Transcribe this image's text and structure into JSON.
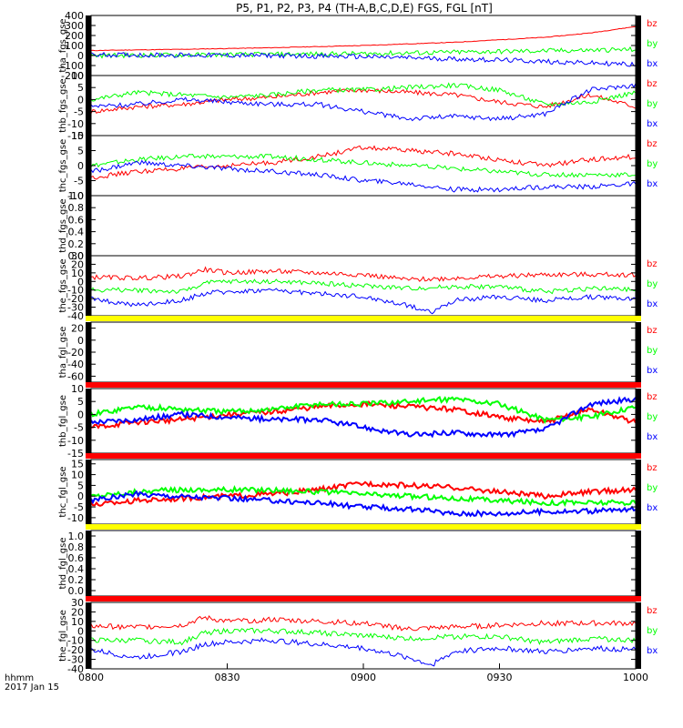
{
  "title": "P5, P1, P2, P3, P4 (TH-A,B,C,D,E) FGS, FGL [nT]",
  "colors": {
    "bx": "#0000ff",
    "by": "#00ff00",
    "bz": "#ff0000",
    "yellow": "#ffff00",
    "red": "#ff0000",
    "axis": "#000000"
  },
  "time_axis": {
    "ticks": [
      "0800",
      "0830",
      "0900",
      "0930",
      "1000"
    ],
    "unit_label": "hhmm",
    "date_label": "2017 Jan 15"
  },
  "chart_data": [
    {
      "type": "line",
      "ylabel": "tha_fgs_gse",
      "yticks": [
        "400",
        "300",
        "200",
        "100",
        "0",
        "-100",
        "-200"
      ],
      "ylim": [
        -200,
        400
      ],
      "legend": [
        "bz",
        "by",
        "bx"
      ],
      "series": [
        {
          "name": "bz",
          "x_minutes": [
            0,
            20,
            40,
            60,
            80,
            100,
            110,
            120
          ],
          "values": [
            50,
            62,
            78,
            100,
            132,
            182,
            225,
            290
          ]
        },
        {
          "name": "by",
          "x_minutes": [
            0,
            30,
            60,
            90,
            120
          ],
          "values": [
            0,
            8,
            18,
            40,
            60
          ]
        },
        {
          "name": "bx",
          "x_minutes": [
            0,
            40,
            60,
            90,
            120
          ],
          "values": [
            8,
            0,
            -12,
            -45,
            -90
          ]
        }
      ]
    },
    {
      "type": "line",
      "ylabel": "thb_fgs_gse",
      "yticks": [
        "10",
        "5",
        "0",
        "-5",
        "-10",
        "-15"
      ],
      "ylim": [
        -15,
        10
      ],
      "legend": [
        "bz",
        "by",
        "bx"
      ],
      "series": [
        {
          "name": "bz",
          "x_minutes": [
            0,
            10,
            20,
            30,
            40,
            50,
            60,
            70,
            80,
            90,
            100,
            110,
            120
          ],
          "values": [
            -5,
            -3,
            -2,
            0,
            1,
            3,
            4,
            3,
            2,
            -1,
            -3,
            2,
            -3
          ]
        },
        {
          "name": "by",
          "x_minutes": [
            0,
            10,
            20,
            30,
            40,
            50,
            60,
            70,
            80,
            90,
            100,
            110,
            120
          ],
          "values": [
            0,
            3,
            2,
            1,
            2,
            4,
            4,
            5,
            6,
            4,
            -2,
            -1,
            3
          ]
        },
        {
          "name": "bx",
          "x_minutes": [
            0,
            10,
            20,
            30,
            40,
            50,
            60,
            70,
            80,
            90,
            100,
            110,
            120
          ],
          "values": [
            -3,
            -2,
            0,
            -1,
            -2,
            -2,
            -5,
            -8,
            -7,
            -8,
            -6,
            4,
            6
          ]
        }
      ]
    },
    {
      "type": "line",
      "ylabel": "thc_fgs_gse",
      "yticks": [
        "10",
        "5",
        "0",
        "-5",
        "-10"
      ],
      "ylim": [
        -10,
        10
      ],
      "legend": [
        "bz",
        "by",
        "bx"
      ],
      "series": [
        {
          "name": "bz",
          "x_minutes": [
            0,
            10,
            20,
            30,
            40,
            50,
            60,
            70,
            80,
            90,
            100,
            110,
            120
          ],
          "values": [
            -4,
            -2,
            -1,
            0,
            1,
            3,
            6,
            5,
            4,
            2,
            0,
            2,
            3
          ]
        },
        {
          "name": "by",
          "x_minutes": [
            0,
            10,
            20,
            30,
            40,
            50,
            60,
            70,
            80,
            90,
            100,
            110,
            120
          ],
          "values": [
            0,
            2,
            3,
            3,
            3,
            2,
            1,
            0,
            -1,
            -2,
            -3,
            -3,
            -3
          ]
        },
        {
          "name": "bx",
          "x_minutes": [
            0,
            10,
            20,
            30,
            40,
            50,
            60,
            70,
            80,
            90,
            100,
            110,
            120
          ],
          "values": [
            -2,
            1,
            0,
            -1,
            -2,
            -3,
            -5,
            -6,
            -8,
            -8,
            -7,
            -7,
            -6
          ]
        }
      ]
    },
    {
      "type": "line",
      "ylabel": "thd_fgs_gse",
      "yticks": [
        "1.0",
        "0.8",
        "0.6",
        "0.4",
        "0.2",
        "0.0"
      ],
      "ylim": [
        0,
        1
      ],
      "legend": [],
      "series": []
    },
    {
      "type": "line",
      "ylabel": "the_fgs_gse",
      "yticks": [
        "30",
        "20",
        "10",
        "0",
        "-10",
        "-20",
        "-30",
        "-40"
      ],
      "ylim": [
        -40,
        30
      ],
      "legend": [
        "bz",
        "by",
        "bx"
      ],
      "series": [
        {
          "name": "bz",
          "x_minutes": [
            0,
            10,
            20,
            25,
            30,
            40,
            50,
            60,
            70,
            80,
            90,
            100,
            110,
            120
          ],
          "values": [
            5,
            4,
            6,
            14,
            10,
            12,
            10,
            8,
            2,
            4,
            6,
            8,
            8,
            8
          ]
        },
        {
          "name": "by",
          "x_minutes": [
            0,
            10,
            20,
            25,
            30,
            40,
            50,
            60,
            70,
            80,
            90,
            100,
            110,
            120
          ],
          "values": [
            -10,
            -10,
            -12,
            -2,
            0,
            0,
            -2,
            -5,
            -8,
            -6,
            -6,
            -12,
            -8,
            -10
          ]
        },
        {
          "name": "bx",
          "x_minutes": [
            0,
            10,
            20,
            25,
            30,
            40,
            50,
            60,
            70,
            75,
            80,
            90,
            100,
            110,
            120
          ],
          "values": [
            -20,
            -28,
            -22,
            -14,
            -12,
            -10,
            -14,
            -18,
            -28,
            -36,
            -22,
            -18,
            -22,
            -18,
            -20
          ]
        }
      ]
    },
    {
      "type": "line",
      "ylabel": "tha_fgl_gse",
      "yticks": [
        "20",
        "0",
        "-20",
        "-40",
        "-60"
      ],
      "ylim": [
        -70,
        30
      ],
      "legend": [
        "bz",
        "by",
        "bx"
      ],
      "series": []
    },
    {
      "type": "line",
      "ylabel": "thb_fgl_gse",
      "yticks": [
        "10",
        "5",
        "0",
        "-5",
        "-10",
        "-15"
      ],
      "ylim": [
        -15,
        10
      ],
      "legend": [
        "bz",
        "by",
        "bx"
      ],
      "series": [
        {
          "name": "bz",
          "x_minutes": [
            0,
            10,
            20,
            30,
            40,
            50,
            60,
            70,
            80,
            90,
            100,
            110,
            120
          ],
          "values": [
            -5,
            -3,
            -2,
            0,
            1,
            3,
            4,
            3,
            2,
            -1,
            -3,
            2,
            -3
          ]
        },
        {
          "name": "by",
          "x_minutes": [
            0,
            10,
            20,
            30,
            40,
            50,
            60,
            70,
            80,
            90,
            100,
            110,
            120
          ],
          "values": [
            0,
            3,
            2,
            1,
            2,
            4,
            4,
            5,
            6,
            4,
            -2,
            -1,
            3
          ]
        },
        {
          "name": "bx",
          "x_minutes": [
            0,
            10,
            20,
            30,
            40,
            50,
            60,
            70,
            80,
            90,
            100,
            110,
            120
          ],
          "values": [
            -3,
            -2,
            0,
            -1,
            -2,
            -2,
            -5,
            -8,
            -7,
            -8,
            -6,
            4,
            6
          ]
        }
      ]
    },
    {
      "type": "line",
      "ylabel": "thc_fgl_gse",
      "yticks": [
        "15",
        "10",
        "5",
        "0",
        "-5",
        "-10"
      ],
      "ylim": [
        -13,
        17
      ],
      "legend": [
        "bz",
        "by",
        "bx"
      ],
      "series": [
        {
          "name": "bz",
          "x_minutes": [
            0,
            10,
            20,
            30,
            40,
            50,
            60,
            70,
            80,
            90,
            100,
            110,
            120
          ],
          "values": [
            -4,
            -2,
            -1,
            0,
            1,
            3,
            6,
            5,
            4,
            2,
            0,
            2,
            3
          ]
        },
        {
          "name": "by",
          "x_minutes": [
            0,
            10,
            20,
            30,
            40,
            50,
            60,
            70,
            80,
            90,
            100,
            110,
            120
          ],
          "values": [
            0,
            2,
            3,
            3,
            3,
            2,
            1,
            0,
            -1,
            -2,
            -3,
            -3,
            -3
          ]
        },
        {
          "name": "bx",
          "x_minutes": [
            0,
            10,
            20,
            30,
            40,
            50,
            60,
            70,
            80,
            90,
            100,
            110,
            120
          ],
          "values": [
            -2,
            1,
            0,
            -1,
            -2,
            -3,
            -5,
            -6,
            -8,
            -8,
            -7,
            -7,
            -6
          ]
        }
      ]
    },
    {
      "type": "line",
      "ylabel": "thd_fgl_gse",
      "yticks": [
        "1.0",
        "0.8",
        "0.6",
        "0.4",
        "0.2",
        "0.0"
      ],
      "ylim": [
        -0.1,
        1.1
      ],
      "legend": [],
      "series": []
    },
    {
      "type": "line",
      "ylabel": "the_fgl_gse",
      "yticks": [
        "30",
        "20",
        "10",
        "0",
        "-10",
        "-20",
        "-30",
        "-40"
      ],
      "ylim": [
        -40,
        30
      ],
      "legend": [
        "bz",
        "by",
        "bx"
      ],
      "series": [
        {
          "name": "bz",
          "x_minutes": [
            0,
            10,
            20,
            25,
            30,
            40,
            50,
            60,
            70,
            80,
            90,
            100,
            110,
            120
          ],
          "values": [
            5,
            4,
            6,
            14,
            10,
            12,
            10,
            8,
            2,
            4,
            6,
            8,
            8,
            8
          ]
        },
        {
          "name": "by",
          "x_minutes": [
            0,
            10,
            20,
            25,
            30,
            40,
            50,
            60,
            70,
            80,
            90,
            100,
            110,
            120
          ],
          "values": [
            -10,
            -10,
            -12,
            -2,
            0,
            0,
            -2,
            -5,
            -8,
            -6,
            -6,
            -12,
            -8,
            -10
          ]
        },
        {
          "name": "bx",
          "x_minutes": [
            0,
            10,
            20,
            25,
            30,
            40,
            50,
            60,
            70,
            75,
            80,
            90,
            100,
            110,
            120
          ],
          "values": [
            -20,
            -28,
            -22,
            -14,
            -12,
            -10,
            -14,
            -18,
            -28,
            -36,
            -22,
            -18,
            -22,
            -18,
            -20
          ]
        }
      ]
    }
  ]
}
